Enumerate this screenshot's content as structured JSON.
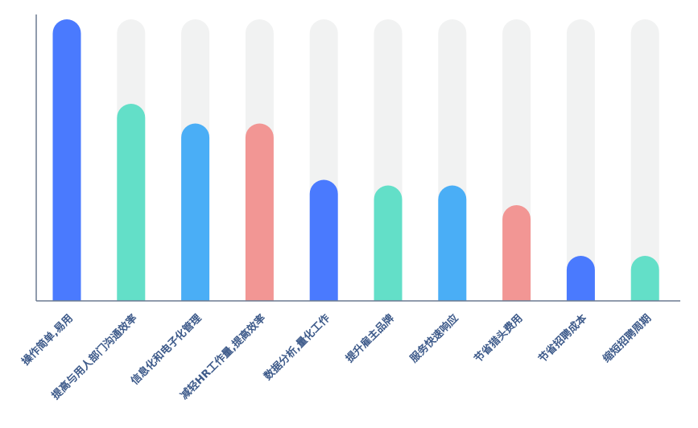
{
  "chart_data": {
    "type": "bar",
    "categories": [
      "操作简单,易用",
      "提高与用人部门沟通效率",
      "信息化和电子化管理",
      "减轻HR工作量,提高效率",
      "数据分析,量化工作",
      "提升雇主品牌",
      "服务快速响应",
      "节省猎头费用",
      "节省招聘成本",
      "缩短招聘周期"
    ],
    "values": [
      100,
      70,
      63,
      63,
      43,
      41,
      41,
      34,
      16,
      16
    ],
    "ylim": [
      0,
      100
    ],
    "colors": [
      "#4a7afe",
      "#63dfc8",
      "#4aaef6",
      "#f29694",
      "#4a7afe",
      "#63dfc8",
      "#4aaef6",
      "#f29694",
      "#4a7afe",
      "#63dfc8"
    ],
    "track_color": "#f1f2f2",
    "axis_color": "#6b7a90",
    "title": "",
    "xlabel": "",
    "ylabel": "",
    "grid": false,
    "legend": "none"
  }
}
